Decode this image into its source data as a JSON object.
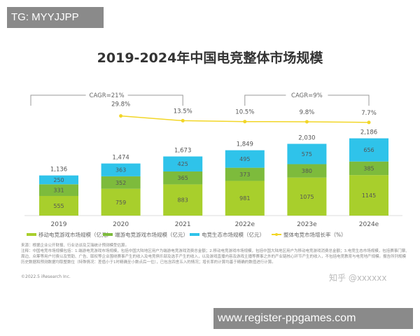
{
  "overlay_top": "TG: MYYJJPP",
  "overlay_bottom": "www.register-ppgames.com",
  "watermark": "知乎 @xxxxxx",
  "source_note": "来源：根据企业公开财报、行业访谈及艾瑞统计预测模型估算。",
  "note": "注释：中国电竞市场规模包括：1.端游电竞游戏市场规模，包括中国大陆地区用户为端游电竞游戏消费总金额；2.移动电竞游戏市场规模，包括中国大陆地区用户为移动电竞游戏消费总金额；3.电竞生态市场规模，包括赛事门票、周边、众筹等用户付费以及赞助、广告、版权等企业围绕赛事产生的收入及电竞俱乐部及选手产生的收入，以及游戏直播内容及游戏主播等赛事之外的产业链核心环节产生的收入，不包括电竞教育与电竞地产规模。报告所列规模历史数据和预测数据均取整数位（特殊情况：差值小于1时精确至小数点后一位），已包含四舍五入的情况；增长率的计算均基于精确的数值进行计算。",
  "copyright": "©2022.5 iResearch Inc.",
  "chart_data": {
    "type": "bar",
    "stacked": true,
    "title": "2019-2024年中国电竞整体市场规模",
    "categories": [
      "2019",
      "2020",
      "2021",
      "2022e",
      "2023e",
      "2024e"
    ],
    "series": [
      {
        "name": "移动电竞游戏市场规模（亿元）",
        "color": "#a8cf2c",
        "values": [
          555,
          759,
          883,
          981,
          1075,
          1145
        ]
      },
      {
        "name": "端游电竞游戏市场规模（亿元）",
        "color": "#7dbb3c",
        "values": [
          331,
          352,
          365,
          373,
          380,
          385
        ]
      },
      {
        "name": "电竞生态市场规模（亿元）",
        "color": "#2fc3ea",
        "values": [
          250,
          363,
          425,
          495,
          575,
          656
        ]
      }
    ],
    "totals": [
      "1,136",
      "1,474",
      "1,673",
      "1,849",
      "2,030",
      "2,186"
    ],
    "line": {
      "name": "整体电竞市场增长率（%）",
      "color": "#f2d627",
      "x": [
        "2020",
        "2021",
        "2022e",
        "2023e",
        "2024e"
      ],
      "values": [
        29.8,
        13.5,
        10.5,
        9.8,
        7.7
      ],
      "labels": [
        "29.8%",
        "13.5%",
        "10.5%",
        "9.8%",
        "7.7%"
      ]
    },
    "annotations": [
      {
        "text": "CAGR=21%",
        "from": "2019",
        "to": "2021"
      },
      {
        "text": "CAGR=9%",
        "from": "2022e",
        "to": "2024e"
      }
    ],
    "legend": "bottom",
    "grid": false
  }
}
